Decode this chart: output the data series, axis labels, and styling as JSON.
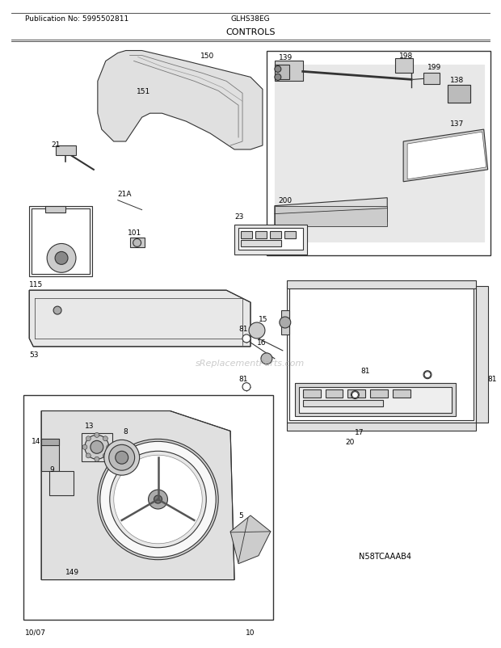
{
  "title": "CONTROLS",
  "pub_no": "Publication No: 5995502811",
  "model": "GLHS38EG",
  "date": "10/07",
  "page": "10",
  "diagram_id": "N58TCAAAB4",
  "bg_color": "#ffffff",
  "line_color": "#333333",
  "text_color": "#000000",
  "watermark": "sReplacementParts.com",
  "figsize": [
    6.2,
    8.03
  ],
  "dpi": 100
}
